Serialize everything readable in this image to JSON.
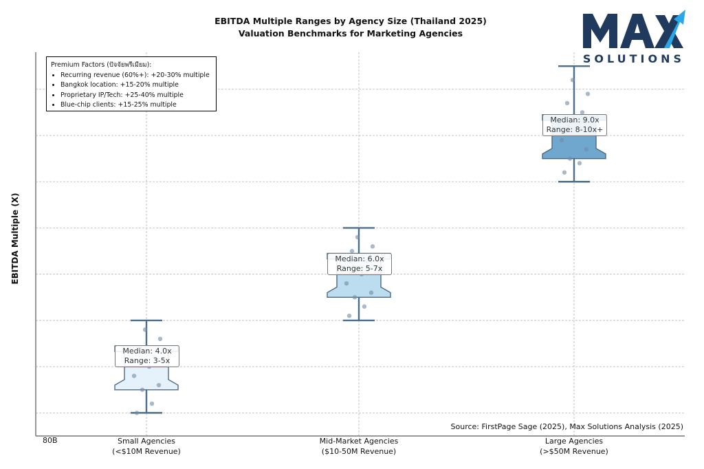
{
  "title": {
    "line1": "EBITDA Multiple Ranges by Agency Size (Thailand 2025)",
    "line2": "Valuation Benchmarks for Marketing Agencies"
  },
  "logo": {
    "text": "MAX",
    "subtitle": "SOLUTIONS",
    "colors": {
      "dark": "#1f3a5c",
      "accent": "#2aa7e8"
    }
  },
  "premium_factors": {
    "title": "Premium Factors (ปัจจัยพรีเมียม):",
    "items": [
      "Recurring revenue (60%+): +20-30% multiple",
      "Bangkok location: +15-20% multiple",
      "Proprietary IP/Tech: +25-40% multiple",
      "Blue-chip clients: +15-25% multiple"
    ]
  },
  "source": "Source: FirstPage Sage (2025), Max Solutions Analysis (2025)",
  "corner_label": "80B",
  "chart_data": {
    "type": "box",
    "ylabel": "EBITDA Multiple (X)",
    "xlabel": "",
    "ylim": [
      2.5,
      10.8
    ],
    "grid": true,
    "y_tick_labels_shown": false,
    "categories": [
      {
        "label_line1": "Small Agencies",
        "label_line2": "(<$10M Revenue)"
      },
      {
        "label_line1": "Mid-Market Agencies",
        "label_line2": "($10-50M Revenue)"
      },
      {
        "label_line1": "Large Agencies",
        "label_line2": "(>$50M Revenue)"
      }
    ],
    "boxes": [
      {
        "whisker_low": 3.0,
        "q1": 3.5,
        "median": 4.0,
        "q3": 4.45,
        "whisker_high": 5.0,
        "fill": "#e6f2fb",
        "annotation_line1": "Median: 4.0x",
        "annotation_line2": "Range: 3-5x",
        "points": [
          3.0,
          3.2,
          3.5,
          3.6,
          3.8,
          4.0,
          4.2,
          4.4,
          4.6,
          4.8
        ]
      },
      {
        "whisker_low": 5.0,
        "q1": 5.5,
        "median": 6.0,
        "q3": 6.45,
        "whisker_high": 7.0,
        "fill": "#bcdcf0",
        "annotation_line1": "Median: 6.0x",
        "annotation_line2": "Range: 5-7x",
        "points": [
          5.1,
          5.3,
          5.5,
          5.6,
          5.8,
          6.0,
          6.3,
          6.5,
          6.6,
          6.8
        ]
      },
      {
        "whisker_low": 8.0,
        "q1": 8.5,
        "median": 9.0,
        "q3": 9.45,
        "whisker_high": 10.5,
        "fill": "#6fa7cf",
        "annotation_line1": "Median: 9.0x",
        "annotation_line2": "Range: 8-10x+",
        "points": [
          8.2,
          8.4,
          8.5,
          8.7,
          8.9,
          9.3,
          9.5,
          9.7,
          9.9,
          10.2
        ]
      }
    ],
    "median_line_color": "#e02020",
    "whisker_color": "#4a6e8e",
    "point_color": "#6f8aa6"
  }
}
